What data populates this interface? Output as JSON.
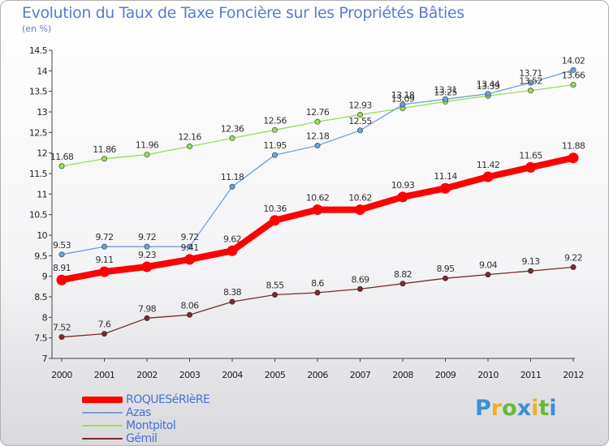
{
  "chart_data": {
    "type": "line",
    "title": "Evolution du Taux de Taxe Foncière sur les Propriétés Bâties",
    "subtitle": "(en %)",
    "xlabel": "",
    "ylabel": "",
    "x": [
      "2000",
      "2001",
      "2002",
      "2003",
      "2004",
      "2005",
      "2006",
      "2007",
      "2008",
      "2009",
      "2010",
      "2011",
      "2012"
    ],
    "ylim": [
      7,
      14.5
    ],
    "yticks": [
      "7",
      "7.5",
      "8",
      "8.5",
      "9",
      "9.5",
      "10",
      "10.5",
      "11",
      "11.5",
      "12",
      "12.5",
      "13",
      "13.5",
      "14",
      "14.5"
    ],
    "grid": false,
    "legend_position": "bottom-left",
    "series": [
      {
        "name": "ROQUESéRIèRE",
        "color": "#ff0000",
        "values": [
          8.91,
          9.11,
          9.23,
          9.41,
          9.62,
          10.36,
          10.62,
          10.62,
          10.93,
          11.14,
          11.42,
          11.65,
          11.88
        ],
        "labels": [
          "8.91",
          "9.11",
          "9.23",
          "9.41",
          "9.62",
          "10.36",
          "10.62",
          "10.62",
          "10.93",
          "11.14",
          "11.42",
          "11.65",
          "11.88"
        ]
      },
      {
        "name": "Azas",
        "color": "#6fa0d8",
        "values": [
          9.53,
          9.72,
          9.72,
          9.72,
          11.18,
          11.95,
          12.18,
          12.55,
          13.18,
          13.31,
          13.44,
          13.71,
          14.02
        ],
        "labels": [
          "9.53",
          "9.72",
          "9.72",
          "9.72",
          "11.18",
          "11.95",
          "12.18",
          "12.55",
          "13.18",
          "13.31",
          "13.44",
          "13.71",
          "14.02"
        ]
      },
      {
        "name": "Montpitol",
        "color": "#99dd55",
        "values": [
          11.68,
          11.86,
          11.96,
          12.16,
          12.36,
          12.56,
          12.76,
          12.93,
          13.09,
          13.25,
          13.39,
          13.52,
          13.66
        ],
        "labels": [
          "11.68",
          "11.86",
          "11.96",
          "12.16",
          "12.36",
          "12.56",
          "12.76",
          "12.93",
          "13.09",
          "13.25",
          "13.39",
          "13.52",
          "13.66"
        ]
      },
      {
        "name": "Gémil",
        "color": "#7a2a2a",
        "values": [
          7.52,
          7.6,
          7.98,
          8.06,
          8.38,
          8.55,
          8.6,
          8.69,
          8.82,
          8.95,
          9.04,
          9.13,
          9.22
        ],
        "labels": [
          "7.52",
          "7.6",
          "7.98",
          "8.06",
          "8.38",
          "8.55",
          "8.6",
          "8.69",
          "8.82",
          "8.95",
          "9.04",
          "9.13",
          "9.22"
        ]
      }
    ]
  },
  "brand": {
    "letters": [
      "P",
      "r",
      "o",
      "x",
      "i",
      "t",
      "i"
    ],
    "colors": [
      "#3b8fd9",
      "#f0b020",
      "#66bb33",
      "#3b8fd9",
      "#f0b020",
      "#66bb33",
      "#3b8fd9"
    ]
  }
}
